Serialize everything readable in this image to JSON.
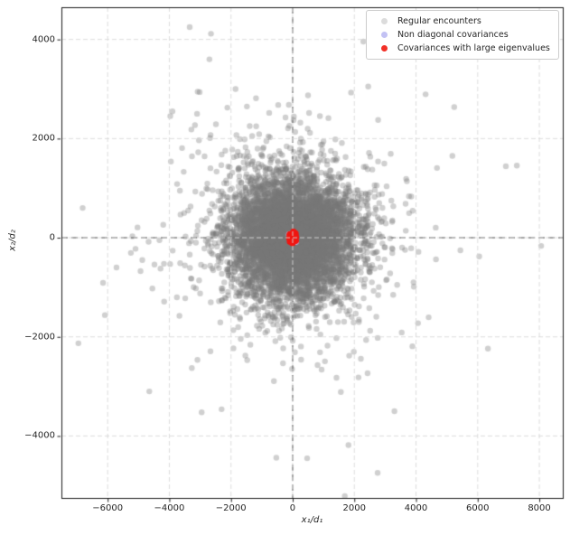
{
  "figure": {
    "background": "#ffffff"
  },
  "chart_data": {
    "type": "scatter",
    "title": "",
    "xlabel": "x₁/d₁",
    "ylabel": "x₂/d₂",
    "xlim": [
      -7500,
      8760
    ],
    "ylim": [
      -5250,
      4650
    ],
    "xticks": [
      -6000,
      -4000,
      -2000,
      0,
      2000,
      4000,
      6000,
      8000
    ],
    "xtick_labels": [
      "−6000",
      "−4000",
      "−2000",
      "0",
      "2000",
      "4000",
      "6000",
      "8000"
    ],
    "yticks": [
      -4000,
      -2000,
      0,
      2000,
      4000
    ],
    "ytick_labels": [
      "−4000",
      "−2000",
      "0",
      "2000",
      "4000"
    ],
    "grid": {
      "visible": true,
      "color": "#d9d9d9",
      "dash": [
        5,
        3
      ],
      "above_points": true
    },
    "crosshair": {
      "x": 0,
      "y": 0,
      "color": "#4a4a4a",
      "dash": [
        7,
        4
      ]
    },
    "legend": {
      "position": "upper right",
      "border_color": "#cccccc",
      "background": "#ffffff"
    },
    "series": [
      {
        "name": "Regular encounters",
        "color": "#787878",
        "alpha": 0.35,
        "legend_swatch": "#dcdcdc",
        "marker_radius_px": 3.2,
        "distribution": {
          "kind": "gaussian-mixture",
          "seed": 1337,
          "center": [
            0,
            0
          ],
          "components": [
            {
              "n": 6200,
              "sigma_x": 1000,
              "sigma_y": 600
            },
            {
              "n": 600,
              "sigma_x": 1900,
              "sigma_y": 1150
            },
            {
              "n": 70,
              "sigma_x": 3000,
              "sigma_y": 1800
            }
          ]
        },
        "outlier_points": [
          [
            -3340,
            4250
          ],
          [
            6915,
            1440
          ],
          [
            7270,
            1455
          ],
          [
            8060,
            -165
          ],
          [
            -6950,
            -2130
          ],
          [
            -6150,
            -910
          ],
          [
            -5715,
            -600
          ],
          [
            470,
            -4450
          ],
          [
            -530,
            -4440
          ],
          [
            2755,
            -4745
          ],
          [
            -4650,
            -3100
          ],
          [
            5180,
            1650
          ],
          [
            -3900,
            2550
          ],
          [
            3300,
            -3500
          ],
          [
            2450,
            3050
          ],
          [
            -2700,
            3600
          ]
        ]
      },
      {
        "name": "Non diagonal covariances",
        "color": "#c0bff4",
        "alpha": 1,
        "legend_swatch": "#c3c2f4",
        "marker_radius_px": 4,
        "points": [
          [
            0,
            0
          ],
          [
            -100,
            60
          ],
          [
            90,
            -70
          ]
        ]
      },
      {
        "name": "Covariances with large eigenvalues",
        "color": "#f01510",
        "alpha": 1,
        "legend_swatch": "#f23028",
        "marker_radius_px": 3.8,
        "points": [
          [
            -90,
            65
          ],
          [
            85,
            80
          ],
          [
            -80,
            -75
          ],
          [
            95,
            -60
          ],
          [
            0,
            10
          ],
          [
            -10,
            -105
          ],
          [
            25,
            115
          ],
          [
            -105,
            -5
          ],
          [
            100,
            15
          ],
          [
            0,
            -30
          ]
        ]
      }
    ]
  }
}
